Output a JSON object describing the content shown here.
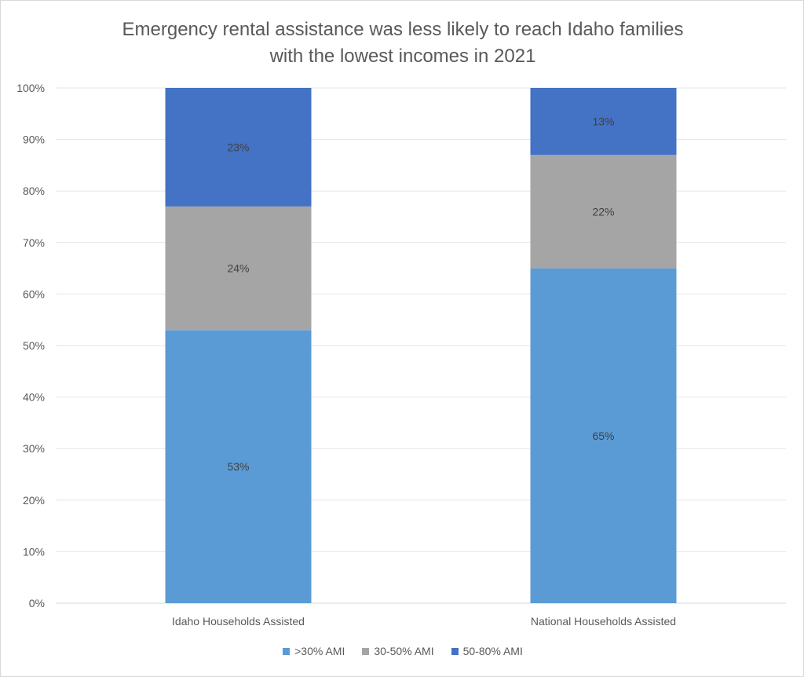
{
  "chart_data": {
    "type": "bar",
    "stacked": true,
    "title_line1": "Emergency rental assistance was less likely to reach Idaho families",
    "title_line2": "with the lowest incomes in 2021",
    "categories": [
      "Idaho Households Assisted",
      "National Households Assisted"
    ],
    "series": [
      {
        "name": ">30% AMI",
        "values": [
          53,
          65
        ],
        "labels": [
          "53%",
          "65%"
        ],
        "color": "#5b9bd5"
      },
      {
        "name": "30-50% AMI",
        "values": [
          24,
          22
        ],
        "labels": [
          "24%",
          "22%"
        ],
        "color": "#a5a5a5"
      },
      {
        "name": "50-80% AMI",
        "values": [
          23,
          13
        ],
        "labels": [
          "23%",
          "13%"
        ],
        "color": "#4472c4"
      }
    ],
    "ylim": [
      0,
      100
    ],
    "yticks": [
      "0%",
      "10%",
      "20%",
      "30%",
      "40%",
      "50%",
      "60%",
      "70%",
      "80%",
      "90%",
      "100%"
    ],
    "grid": true,
    "legend_position": "bottom"
  }
}
